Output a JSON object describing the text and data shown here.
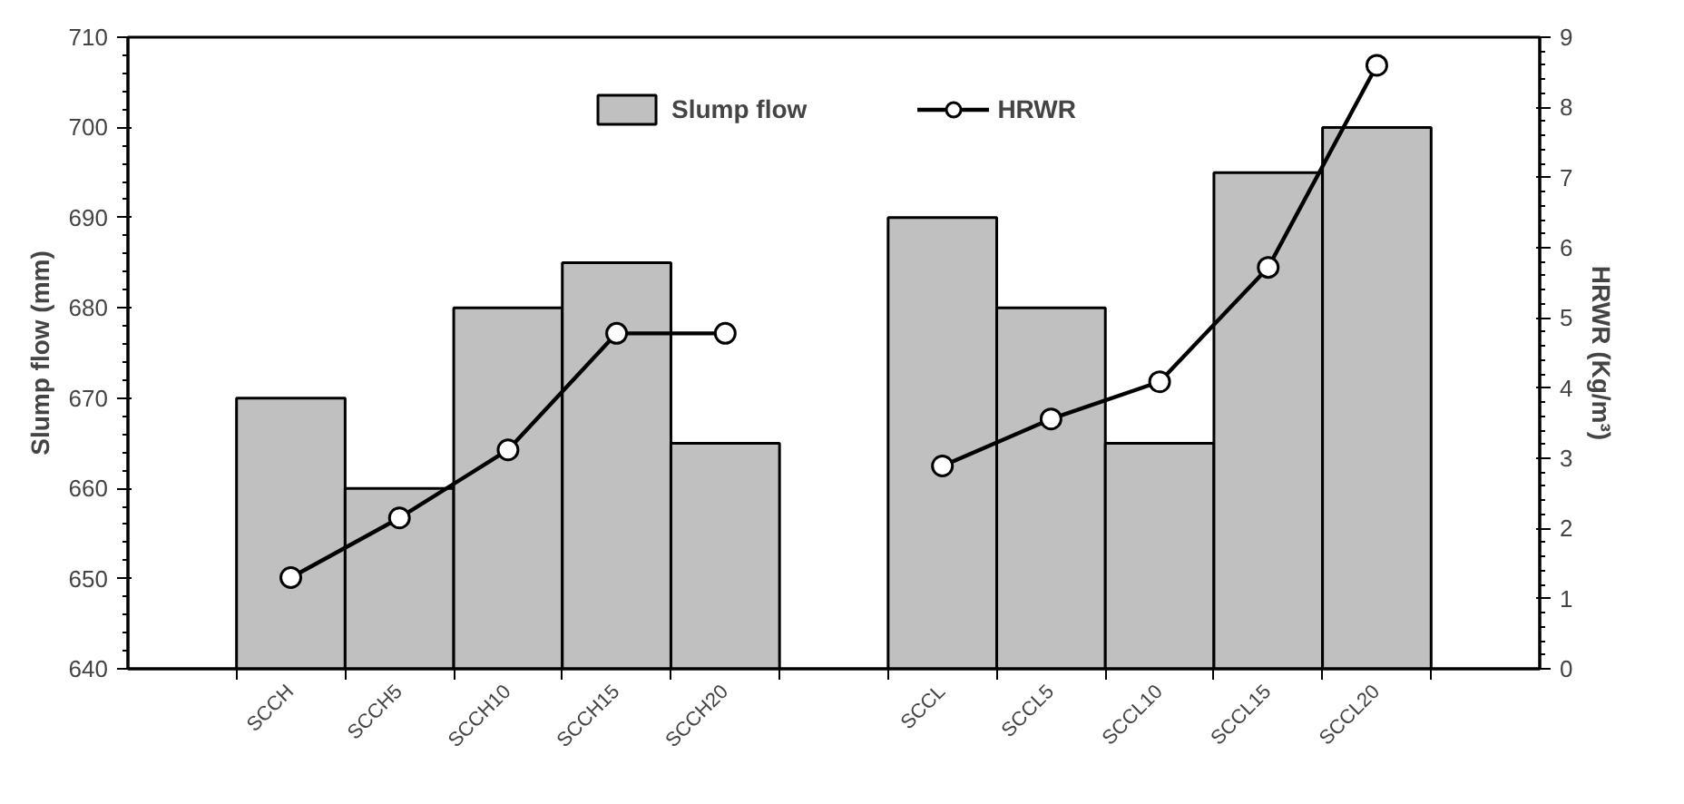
{
  "chart_data": {
    "type": "bar",
    "ylabel": "Slump flow (mm)",
    "y2label": "HRWR (Kg/m³)",
    "categories": [
      "SCCH",
      "SCCH5",
      "SCCH10",
      "SCCH15",
      "SCCH20",
      null,
      "SCCL",
      "SCCL5",
      "SCCL10",
      "SCCL15",
      "SCCL20"
    ],
    "series": [
      {
        "name": "Slump flow",
        "color": "#c0c0c0",
        "values": [
          670,
          660,
          680,
          685,
          665,
          null,
          690,
          680,
          665,
          695,
          700
        ]
      },
      {
        "name": "HRWR",
        "type": "line",
        "axis": "y2",
        "color": "#000000",
        "marker": "circle",
        "line_style": "solid",
        "values": [
          1.3,
          2.15,
          3.12,
          4.78,
          4.78,
          null,
          2.89,
          3.56,
          4.09,
          5.72,
          8.6
        ]
      }
    ],
    "ylim": [
      640,
      710
    ],
    "yticks": [
      640,
      650,
      660,
      670,
      680,
      690,
      700,
      710
    ],
    "y2lim": [
      0,
      9
    ],
    "y2ticks": [
      0,
      1,
      2,
      3,
      4,
      5,
      6,
      7,
      8,
      9
    ],
    "grid": false,
    "legend": "top"
  }
}
